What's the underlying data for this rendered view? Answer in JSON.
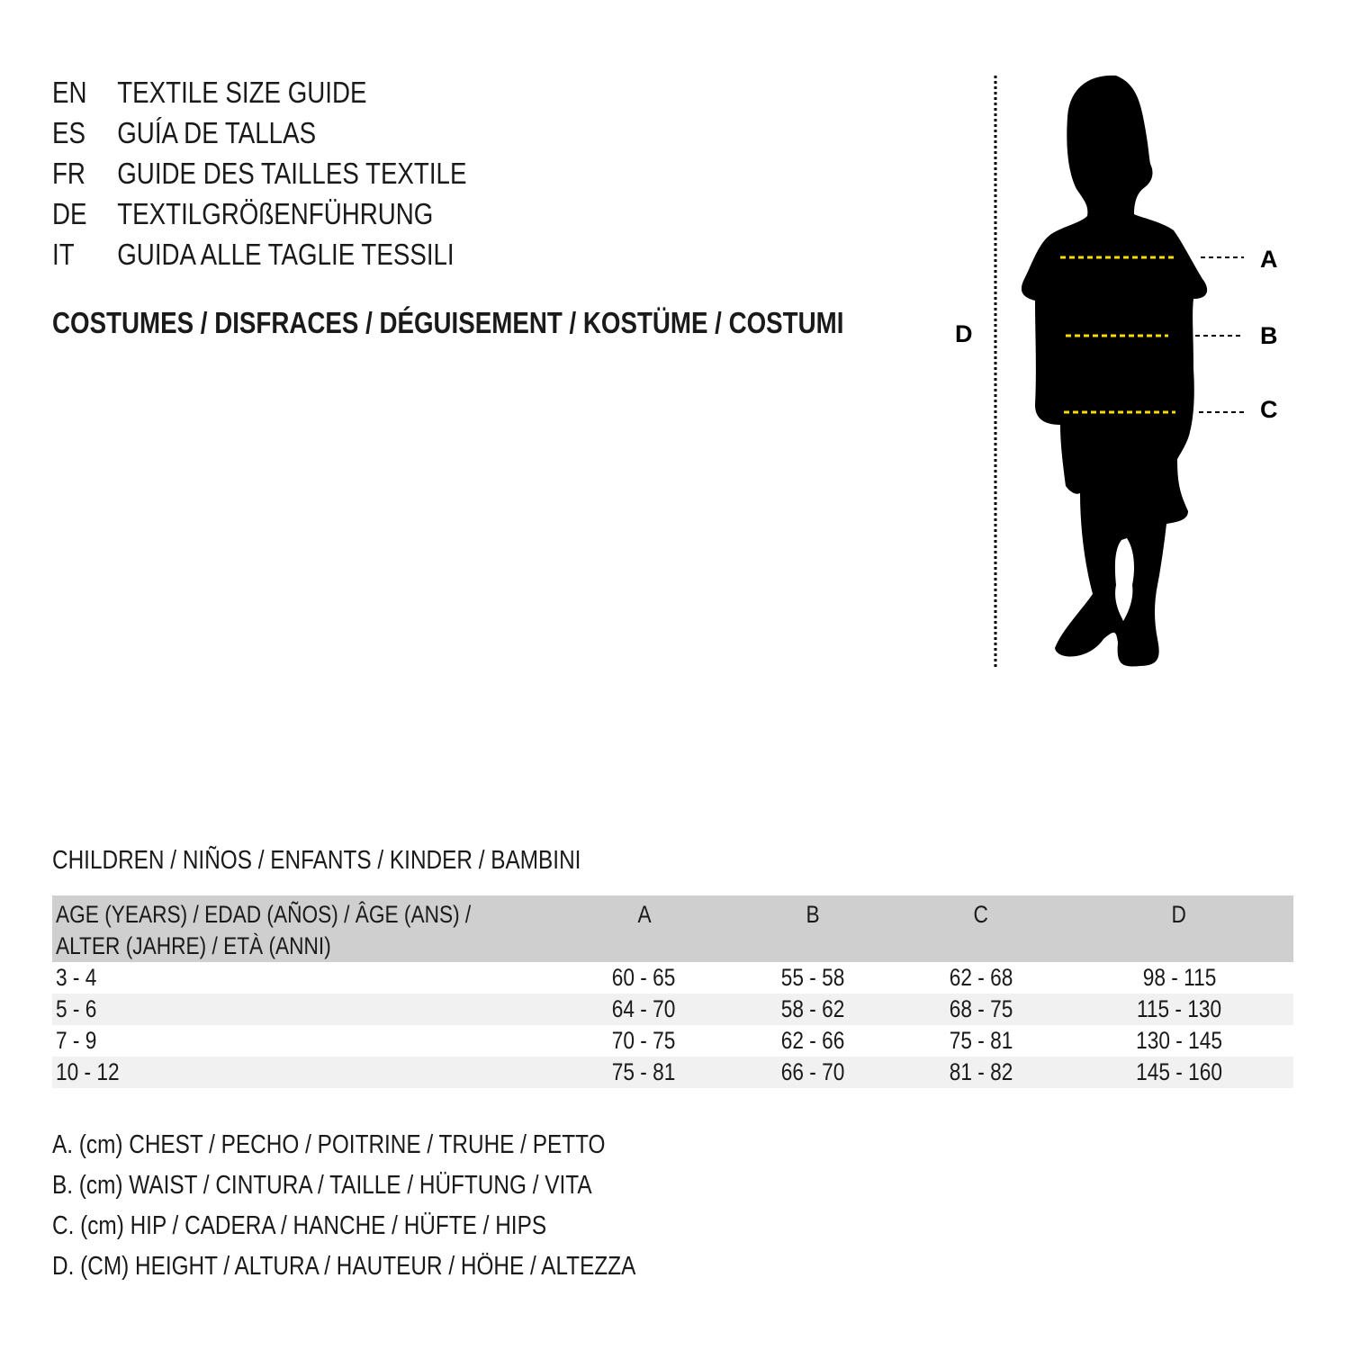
{
  "languages": [
    {
      "code": "EN",
      "title": "TEXTILE SIZE GUIDE"
    },
    {
      "code": "ES",
      "title": "GUÍA DE TALLAS"
    },
    {
      "code": "FR",
      "title": "GUIDE DES TAILLES TEXTILE"
    },
    {
      "code": "DE",
      "title": "TEXTILGRÖßENFÜHRUNG"
    },
    {
      "code": "IT",
      "title": "GUIDA ALLE TAGLIE TESSILI"
    }
  ],
  "category": "COSTUMES / DISFRACES / DÉGUISEMENT / KOSTÜME / COSTUMI",
  "figure": {
    "labels": {
      "a": "A",
      "b": "B",
      "c": "C",
      "d": "D"
    },
    "measure_line_color": "#f5d90a",
    "silhouette_color": "#000000"
  },
  "section_title": "CHILDREN / NIÑOS / ENFANTS / KINDER / BAMBINI",
  "table": {
    "header_line1": "AGE (YEARS) / EDAD (AÑOS) / ÂGE (ANS) /",
    "header_line2": "ALTER (JAHRE) / ETÀ (ANNI)",
    "columns": [
      "A",
      "B",
      "C",
      "D"
    ],
    "rows": [
      [
        "3 - 4",
        "60 - 65",
        "55 - 58",
        "62 - 68",
        "98 - 115"
      ],
      [
        "5 - 6",
        "64 - 70",
        "58 - 62",
        "68 - 75",
        "115 - 130"
      ],
      [
        "7 - 9",
        "70 - 75",
        "62 - 66",
        "75 - 81",
        "130 - 145"
      ],
      [
        "10 - 12",
        "75 - 81",
        "66 - 70",
        "81 - 82",
        "145 - 160"
      ]
    ]
  },
  "legend": [
    "A. (cm) CHEST / PECHO / POITRINE / TRUHE / PETTO",
    "B. (cm) WAIST / CINTURA / TAILLE / HÜFTUNG / VITA",
    "C. (cm) HIP / CADERA / HANCHE / HÜFTE / HIPS",
    "D. (CM) HEIGHT / ALTURA / HAUTEUR / HÖHE / ALTEZZA"
  ]
}
